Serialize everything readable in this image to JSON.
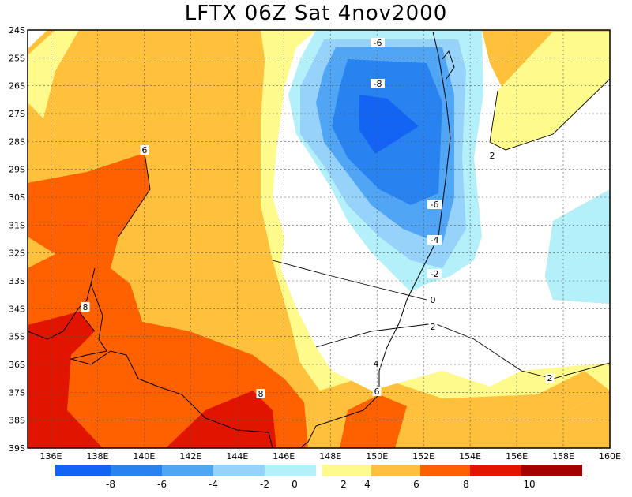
{
  "title": "LFTX 06Z Sat 4nov2000",
  "map": {
    "lon_labels": [
      "136E",
      "138E",
      "140E",
      "142E",
      "144E",
      "146E",
      "148E",
      "150E",
      "152E",
      "154E",
      "156E",
      "158E",
      "160E"
    ],
    "lat_labels": [
      "24S",
      "25S",
      "26S",
      "27S",
      "28S",
      "29S",
      "30S",
      "31S",
      "32S",
      "33S",
      "34S",
      "35S",
      "36S",
      "37S",
      "38S",
      "39S"
    ],
    "lon_range": [
      135,
      160
    ],
    "lat_range": [
      -39,
      -24
    ],
    "grid": "dotted"
  },
  "contour_labels": [
    "-6",
    "-8",
    "6",
    "2",
    "-6",
    "-4",
    "-2",
    "0",
    "2",
    "8",
    "8",
    "4",
    "6",
    "2"
  ],
  "colorbar": {
    "negative": [
      {
        "color": "#1464f4",
        "label": "-8"
      },
      {
        "color": "#2882f0",
        "label": "-6"
      },
      {
        "color": "#50a5f5",
        "label": "-4"
      },
      {
        "color": "#96d2fa",
        "label": "-2"
      },
      {
        "color": "#b4f0fa",
        "label": "0"
      }
    ],
    "positive": [
      {
        "color": "#fffa8c",
        "label": "4"
      },
      {
        "color": "#ffc03c",
        "label": "6"
      },
      {
        "color": "#ff6000",
        "label": "8"
      },
      {
        "color": "#e11400",
        "label": "10"
      },
      {
        "color": "#a50000",
        "label": ""
      }
    ],
    "mid_label": "2",
    "colors": {
      "neg_extreme": "#1464f4",
      "pos_light": "#fffa8c",
      "pos_orange": "#ffc03c"
    }
  }
}
